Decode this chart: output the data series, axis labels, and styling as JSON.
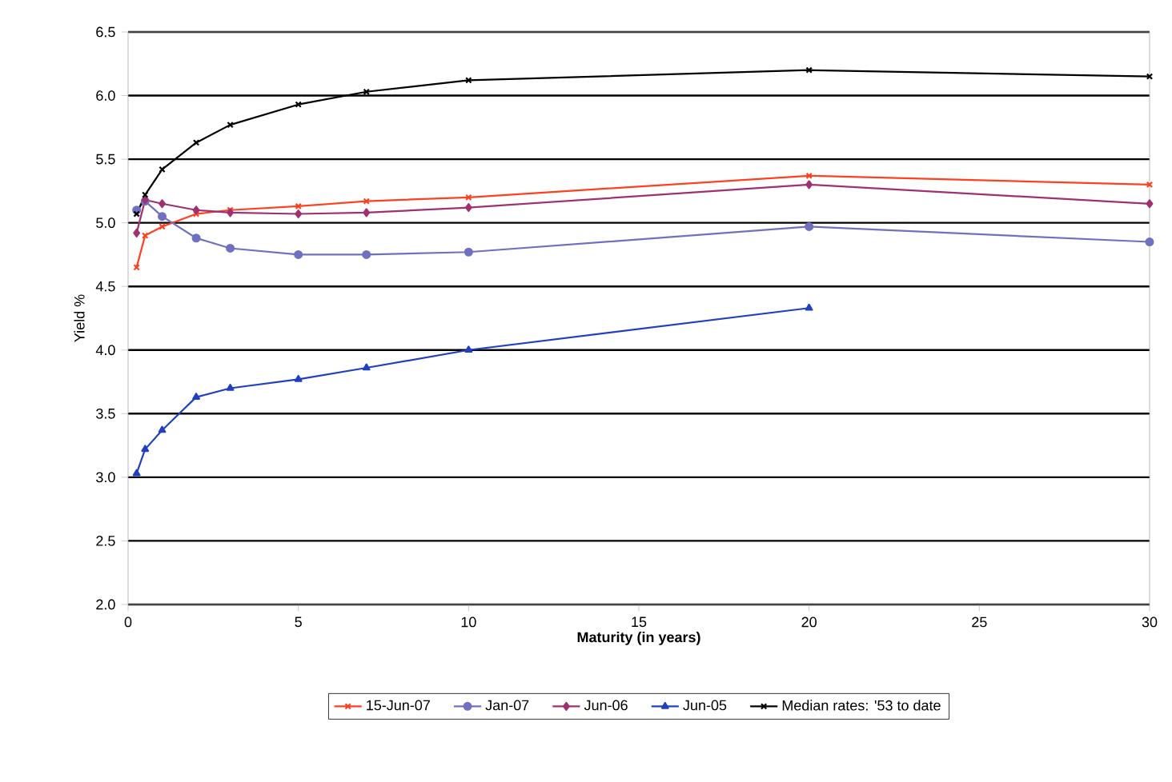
{
  "chart_data": {
    "type": "line",
    "xlabel": "Maturity (in years)",
    "ylabel": "Yield %",
    "xlim": [
      0,
      30
    ],
    "ylim": [
      2,
      6.5
    ],
    "xticks": [
      0,
      5,
      10,
      15,
      20,
      25,
      30
    ],
    "yticks": [
      {
        "value": 2,
        "label": "2.0"
      },
      {
        "value": 2.5,
        "label": "2.5"
      },
      {
        "value": 3,
        "label": "3.0"
      },
      {
        "value": 3.5,
        "label": "3.5"
      },
      {
        "value": 4,
        "label": "4.0"
      },
      {
        "value": 4.5,
        "label": "4.5"
      },
      {
        "value": 5,
        "label": "5.0"
      },
      {
        "value": 5.5,
        "label": "5.5"
      },
      {
        "value": 6,
        "label": "6.0"
      },
      {
        "value": 6.5,
        "label": "6.5"
      }
    ],
    "grid": "y",
    "legend": "bottom",
    "line_style": "solid",
    "x": [
      0.25,
      0.5,
      1,
      2,
      3,
      5,
      7,
      10,
      20,
      30
    ],
    "series": [
      {
        "name": "15-Jun-07",
        "color": "#ff4020",
        "marker": "cross",
        "values": [
          4.65,
          4.9,
          4.97,
          5.07,
          5.1,
          5.13,
          5.17,
          5.2,
          5.37,
          5.3
        ]
      },
      {
        "name": "Jan-07",
        "color": "#7070c0",
        "marker": "circle",
        "values": [
          5.1,
          5.17,
          5.05,
          4.88,
          4.8,
          4.75,
          4.75,
          4.77,
          4.97,
          4.85
        ]
      },
      {
        "name": "Jun-06",
        "color": "#a03070",
        "marker": "diamond",
        "values": [
          4.92,
          5.18,
          5.15,
          5.1,
          5.08,
          5.07,
          5.08,
          5.12,
          5.3,
          5.15
        ]
      },
      {
        "name": "Jun-05",
        "color": "#2040c0",
        "marker": "triangle",
        "values": [
          3.03,
          3.22,
          3.37,
          3.63,
          3.7,
          3.77,
          3.86,
          4.0,
          4.33,
          null
        ]
      },
      {
        "name": "Median rates: '53 to date",
        "color": "#000000",
        "marker": "cross",
        "values": [
          5.07,
          5.22,
          5.42,
          5.63,
          5.77,
          5.93,
          6.03,
          6.12,
          6.2,
          6.15
        ]
      }
    ]
  }
}
